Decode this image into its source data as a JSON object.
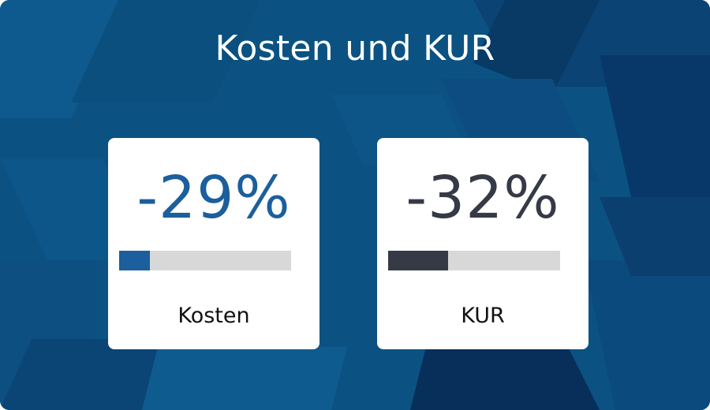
{
  "title": "Kosten und KUR",
  "colors": {
    "background": "#0b5282",
    "accent_blue": "#1b5f9c",
    "accent_dark": "#353a46",
    "bar_track": "#d8d8d8"
  },
  "cards": [
    {
      "value": "-29%",
      "label": "Kosten",
      "fill_fraction": 0.18,
      "color": "#1b5f9c"
    },
    {
      "value": "-32%",
      "label": "KUR",
      "fill_fraction": 0.35,
      "color": "#353a46"
    }
  ]
}
